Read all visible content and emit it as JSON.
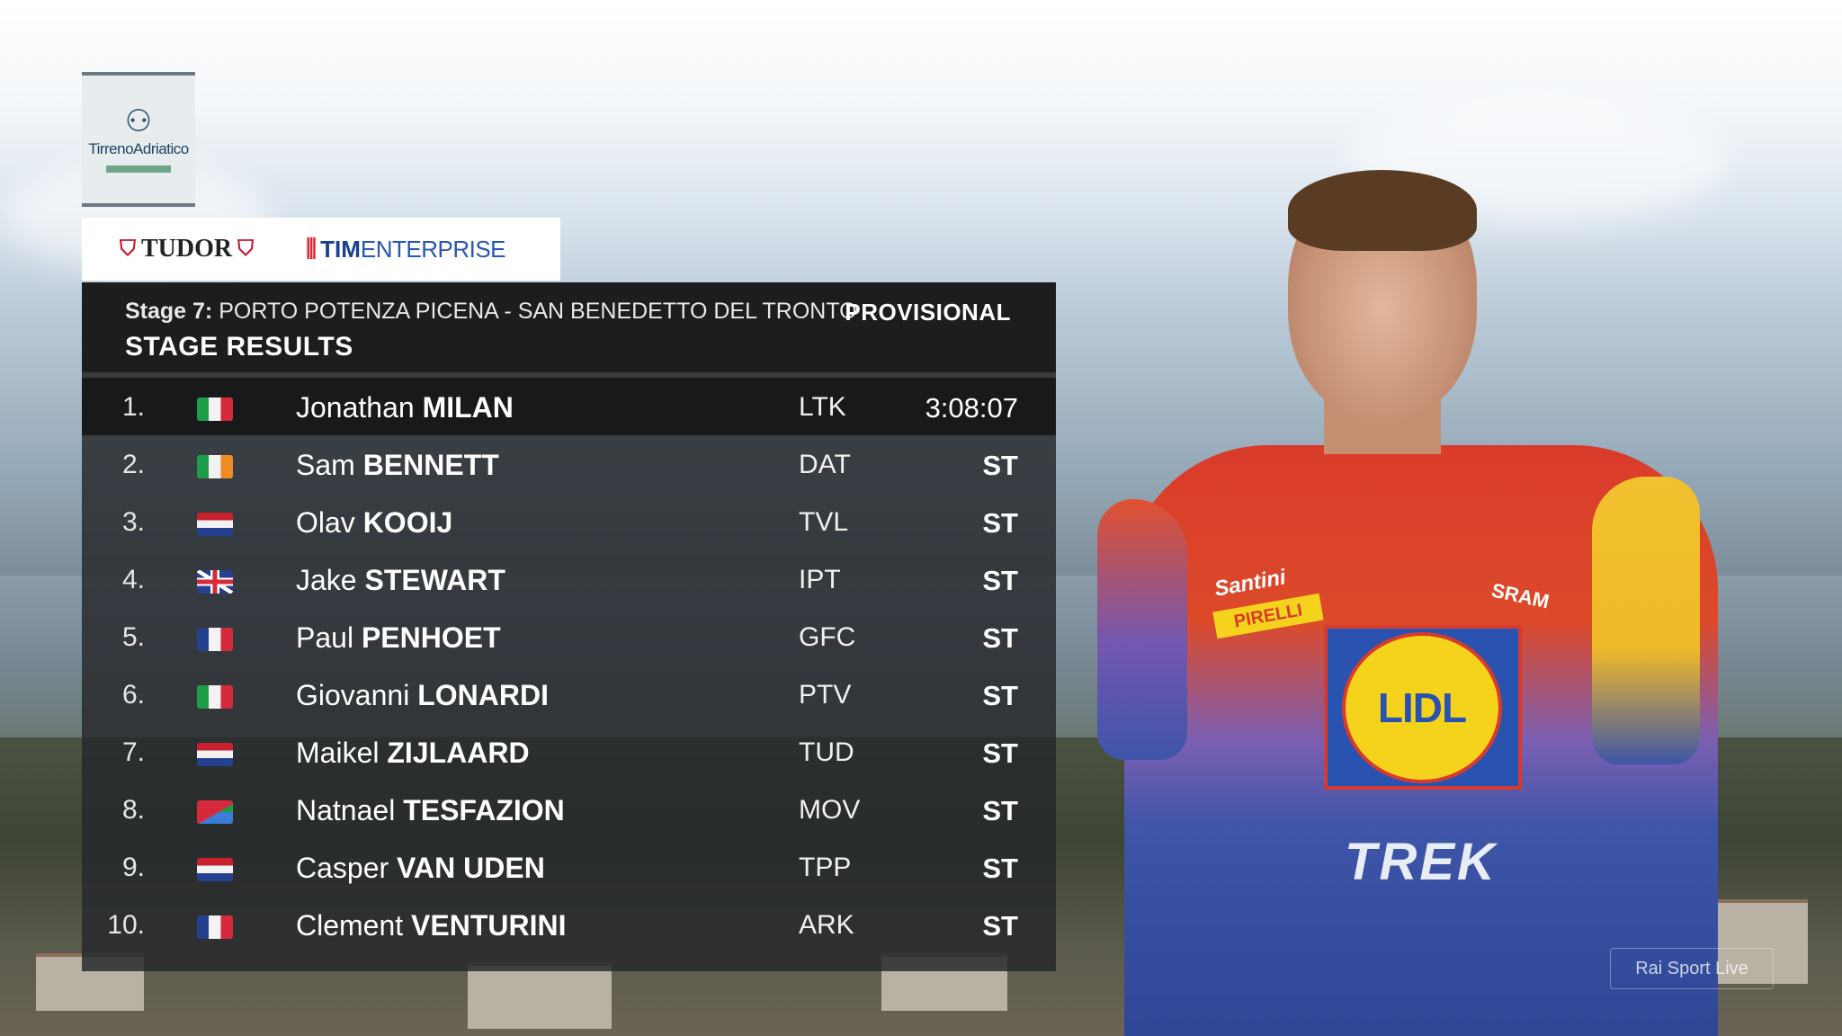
{
  "event_logo": {
    "text": "TirrenoAdriatico"
  },
  "sponsors": {
    "tudor": "TUDOR",
    "tim_bold": "TIM",
    "tim_rest": "ENTERPRISE"
  },
  "header": {
    "stage_prefix": "Stage 7:",
    "stage_route": " PORTO POTENZA PICENA - SAN BENEDETTO DEL TRONTO",
    "status": "PROVISIONAL",
    "title": "STAGE RESULTS"
  },
  "results": [
    {
      "pos": "1.",
      "country": "Italy",
      "first": "Jonathan",
      "last": "MILAN",
      "team": "LTK",
      "time": "3:08:07"
    },
    {
      "pos": "2.",
      "country": "Ireland",
      "first": "Sam",
      "last": "BENNETT",
      "team": "DAT",
      "time": "ST"
    },
    {
      "pos": "3.",
      "country": "Netherlands",
      "first": "Olav",
      "last": "KOOIJ",
      "team": "TVL",
      "time": "ST"
    },
    {
      "pos": "4.",
      "country": "United Kingdom",
      "first": "Jake",
      "last": "STEWART",
      "team": "IPT",
      "time": "ST"
    },
    {
      "pos": "5.",
      "country": "France",
      "first": "Paul",
      "last": "PENHOET",
      "team": "GFC",
      "time": "ST"
    },
    {
      "pos": "6.",
      "country": "Italy",
      "first": "Giovanni",
      "last": "LONARDI",
      "team": "PTV",
      "time": "ST"
    },
    {
      "pos": "7.",
      "country": "Netherlands",
      "first": "Maikel",
      "last": "ZIJLAARD",
      "team": "TUD",
      "time": "ST"
    },
    {
      "pos": "8.",
      "country": "Eritrea",
      "first": "Natnael",
      "last": "TESFAZION",
      "team": "MOV",
      "time": "ST"
    },
    {
      "pos": "9.",
      "country": "Netherlands",
      "first": "Casper",
      "last": "VAN UDEN",
      "team": "TPP",
      "time": "ST"
    },
    {
      "pos": "10.",
      "country": "France",
      "first": "Clement",
      "last": "VENTURINI",
      "team": "ARK",
      "time": "ST"
    }
  ],
  "rider_kit": {
    "chest": "LIDL",
    "front": "TREK",
    "sponsor1": "Santini",
    "sponsor2": "PIRELLI",
    "sponsor3": "SRAM"
  },
  "broadcaster": "Rai Sport Live",
  "colors": {
    "panel_dark": "#1c1d1f",
    "jersey_red": "#d93b2b",
    "jersey_blue": "#2e4795",
    "lidl_yellow": "#f5d31c"
  }
}
